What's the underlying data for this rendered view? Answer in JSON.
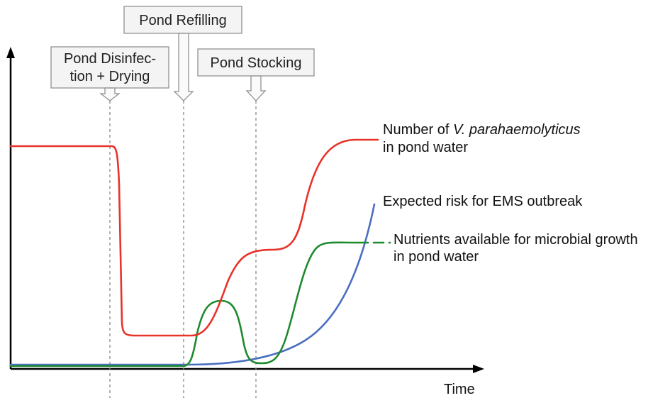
{
  "axes": {
    "x_label": "Time",
    "y_label": ""
  },
  "events": [
    {
      "id": "disinfection",
      "lines": [
        "Pond Disinfec-",
        "tion + Drying"
      ]
    },
    {
      "id": "refilling",
      "lines": [
        "Pond Refilling"
      ]
    },
    {
      "id": "stocking",
      "lines": [
        "Pond Stocking"
      ]
    }
  ],
  "curves": {
    "vibrio": {
      "color": "#e8332b",
      "label_prefix": "Number  of ",
      "label_italic": "V. parahaemolyticus",
      "label_line2": "in pond water"
    },
    "ems_risk": {
      "color": "#4a6fc0",
      "label": "Expected risk for EMS outbreak"
    },
    "nutrients": {
      "color": "#1f8a2e",
      "label_line1": "Nutrients available for microbial growth",
      "label_line2": "in pond water"
    }
  }
}
